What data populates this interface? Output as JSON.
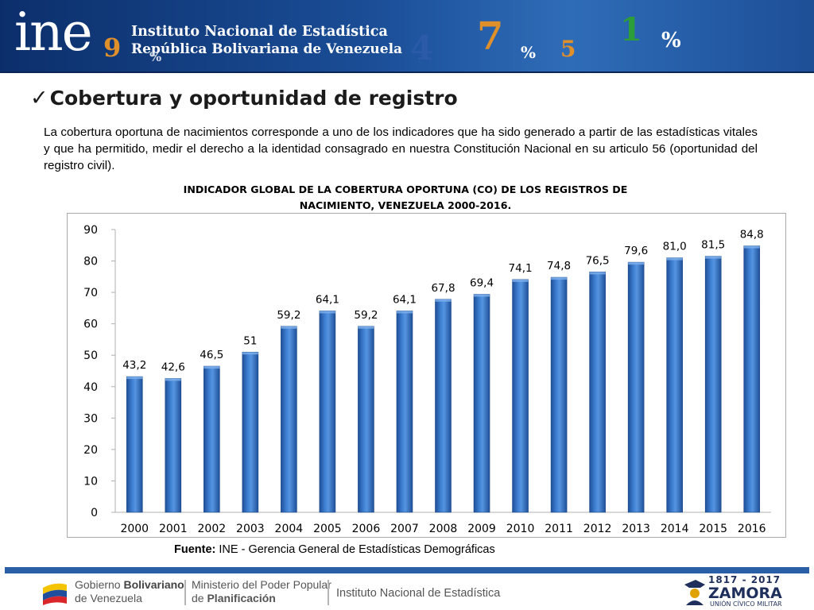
{
  "header": {
    "logo_text": "ine",
    "institution": "Instituto Nacional de Estadística",
    "country": "República Bolivariana de Venezuela",
    "decor": [
      {
        "text": "9",
        "color": "#e0902a",
        "left": 130,
        "top": 44,
        "size": 32
      },
      {
        "text": "%",
        "color": "#d3d9e6",
        "left": 188,
        "top": 64,
        "size": 16
      },
      {
        "text": "4",
        "color": "#2a5aa8",
        "left": 516,
        "top": 40,
        "size": 42
      },
      {
        "text": "7",
        "color": "#e0902a",
        "left": 600,
        "top": 22,
        "size": 48
      },
      {
        "text": "%",
        "color": "#ffffff",
        "left": 655,
        "top": 56,
        "size": 20
      },
      {
        "text": "5",
        "color": "#e0902a",
        "left": 705,
        "top": 48,
        "size": 28
      },
      {
        "text": "1",
        "color": "#2d9d3a",
        "left": 780,
        "top": 18,
        "size": 40
      },
      {
        "text": "%",
        "color": "#ffffff",
        "left": 832,
        "top": 38,
        "size": 26
      }
    ]
  },
  "slide": {
    "title": "Cobertura y oportunidad de registro",
    "intro": "La cobertura oportuna de nacimientos corresponde a uno de los indicadores que ha sido generado  a partir de las estadísticas vitales y que ha permitido, medir el derecho a la identidad consagrado en nuestra Constitución Nacional en su articulo 56 (oportunidad del registro civil).",
    "source_label": "Fuente:",
    "source_text": " INE - Gerencia General de Estadísticas Demográficas"
  },
  "chart_title": {
    "line1": "INDICADOR GLOBAL DE LA COBERTURA OPORTUNA (CO) DE LOS REGISTROS DE",
    "line2": "NACIMIENTO, VENEZUELA 2000-2016."
  },
  "chart_data": {
    "type": "bar",
    "title": "INDICADOR GLOBAL DE LA COBERTURA OPORTUNA (CO) DE LOS REGISTROS DE NACIMIENTO, VENEZUELA 2000-2016.",
    "xlabel": "",
    "ylabel": "",
    "ylim": [
      0,
      90
    ],
    "yticks": [
      0,
      10,
      20,
      30,
      40,
      50,
      60,
      70,
      80,
      90
    ],
    "grid": false,
    "legend": "none",
    "categories": [
      "2000",
      "2001",
      "2002",
      "2003",
      "2004",
      "2005",
      "2006",
      "2007",
      "2008",
      "2009",
      "2010",
      "2011",
      "2012",
      "2013",
      "2014",
      "2015",
      "2016"
    ],
    "values": [
      43.2,
      42.6,
      46.5,
      51,
      59.2,
      64.1,
      59.2,
      64.1,
      67.8,
      69.4,
      74.1,
      74.8,
      76.5,
      79.6,
      81.0,
      81.5,
      84.8
    ],
    "data_labels": [
      "43,2",
      "42,6",
      "46,5",
      "51",
      "59,2",
      "64,1",
      "59,2",
      "64,1",
      "67,8",
      "69,4",
      "74,1",
      "74,8",
      "76,5",
      "79,6",
      "81,0",
      "81,5",
      "84,8"
    ],
    "bar_color": "#2f6bbf"
  },
  "footer": {
    "gob_line1": "Gobierno ",
    "gob_line1_bold": "Bolivariano",
    "gob_line2": "de Venezuela",
    "min_line1": "Ministerio del Poder Popular",
    "min_line2": "de ",
    "min_line2_bold": "Planificación",
    "ine": "Instituto Nacional de Estadística",
    "zamora_years": "1817 - 2017",
    "zamora_name": "ZAMORA",
    "zamora_sub": "UNIÓN CÍVICO MILITAR"
  }
}
